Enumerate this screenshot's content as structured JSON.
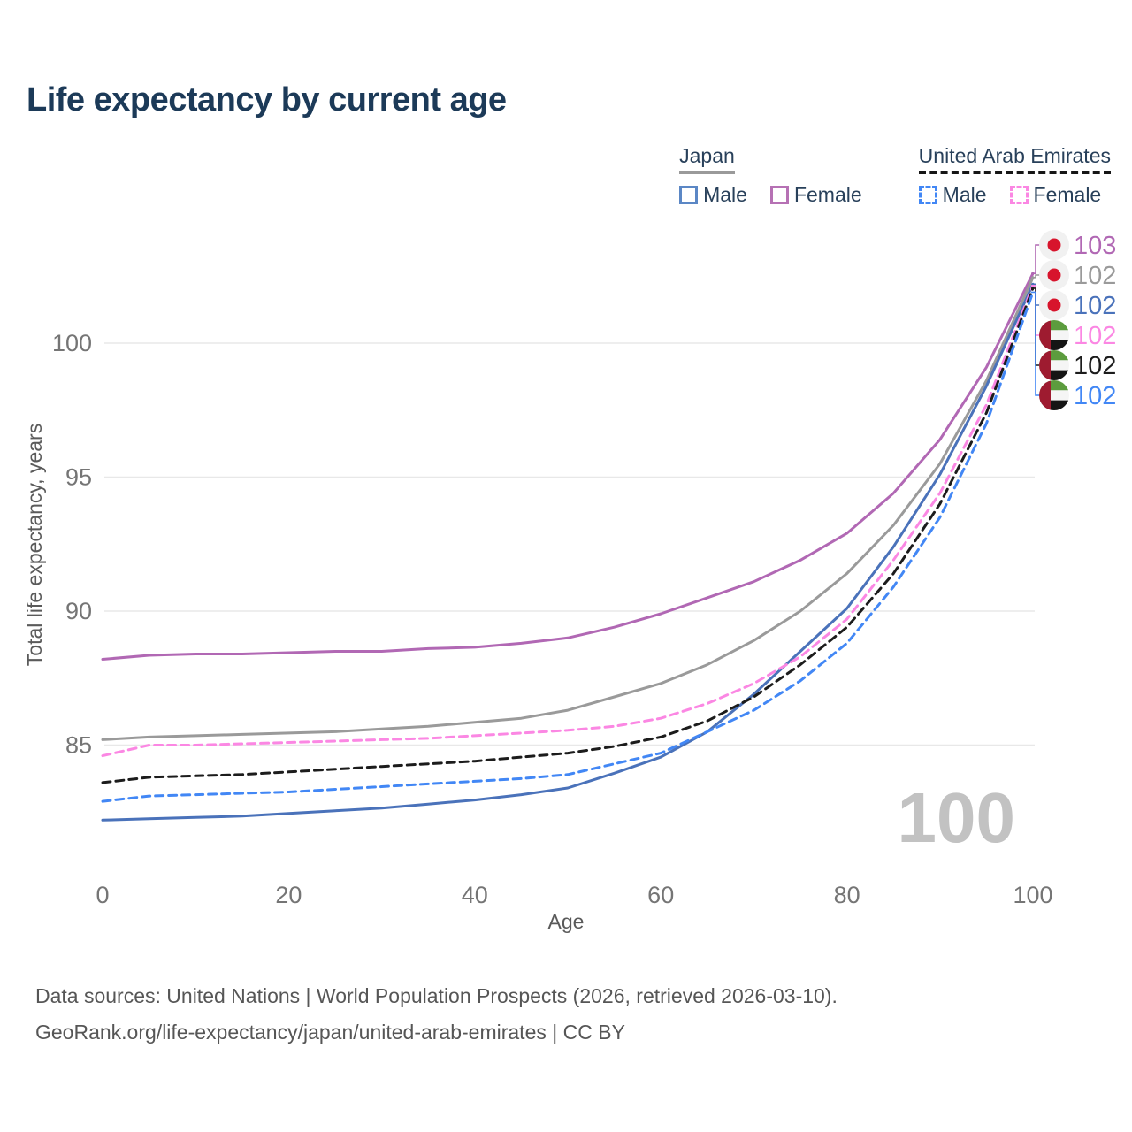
{
  "title": "Life expectancy by current age",
  "legend": {
    "groups": [
      {
        "label": "Japan",
        "underline_color": "#9a9a9a",
        "underline_style": "solid",
        "items": [
          {
            "label": "Male",
            "color": "#4a72ba",
            "style": "solid"
          },
          {
            "label": "Female",
            "color": "#b168b4",
            "style": "solid"
          }
        ]
      },
      {
        "label": "United Arab Emirates",
        "underline_color": "#161616",
        "underline_style": "dashed",
        "items": [
          {
            "label": "Male",
            "color": "#4287f5",
            "style": "dashed"
          },
          {
            "label": "Female",
            "color": "#fb87e3",
            "style": "dashed"
          }
        ]
      }
    ]
  },
  "watermark": "100",
  "footer": {
    "line1": "Data sources: United Nations | World Population Prospects (2026, retrieved 2026-03-10).",
    "line2": "GeoRank.org/life-expectancy/japan/united-arab-emirates | CC BY"
  },
  "chart_data": {
    "type": "line",
    "title": "Life expectancy by current age",
    "xlabel": "Age",
    "ylabel": "Total life expectancy, years",
    "xlim": [
      0,
      100
    ],
    "ylim": [
      81.5,
      103.5
    ],
    "x_ticks": [
      0,
      20,
      40,
      60,
      80,
      100
    ],
    "y_ticks": [
      85,
      90,
      95,
      100
    ],
    "grid": "horizontal-only",
    "legend_position": "top-right",
    "x": [
      0,
      5,
      10,
      15,
      20,
      25,
      30,
      35,
      40,
      45,
      50,
      55,
      60,
      65,
      70,
      75,
      80,
      85,
      90,
      95,
      100
    ],
    "series": [
      {
        "name": "Japan Female",
        "flag": "japan",
        "color": "#b168b4",
        "style": "solid",
        "end_label": "103",
        "values": [
          88.2,
          88.35,
          88.4,
          88.4,
          88.45,
          88.5,
          88.5,
          88.6,
          88.65,
          88.8,
          89.0,
          89.4,
          89.9,
          90.5,
          91.1,
          91.9,
          92.9,
          94.4,
          96.4,
          99.1,
          102.6
        ]
      },
      {
        "name": "Japan",
        "flag": "japan",
        "color": "#9a9a9a",
        "style": "solid",
        "end_label": "102",
        "values": [
          85.2,
          85.3,
          85.35,
          85.4,
          85.45,
          85.5,
          85.6,
          85.7,
          85.85,
          86.0,
          86.3,
          86.8,
          87.3,
          88.0,
          88.9,
          90.0,
          91.4,
          93.2,
          95.5,
          98.6,
          102.45
        ]
      },
      {
        "name": "Japan Male",
        "flag": "japan",
        "color": "#4a72ba",
        "style": "solid",
        "end_label": "102",
        "values": [
          82.2,
          82.25,
          82.3,
          82.35,
          82.45,
          82.55,
          82.65,
          82.8,
          82.95,
          83.15,
          83.4,
          83.95,
          84.55,
          85.5,
          86.9,
          88.5,
          90.1,
          92.4,
          95.1,
          98.4,
          102.2
        ]
      },
      {
        "name": "United Arab Emirates Female",
        "flag": "uae",
        "color": "#fb87e3",
        "style": "dashed",
        "end_label": "102",
        "values": [
          84.6,
          85.0,
          85.0,
          85.05,
          85.1,
          85.15,
          85.2,
          85.25,
          85.35,
          85.45,
          85.55,
          85.7,
          86.0,
          86.55,
          87.3,
          88.3,
          89.7,
          91.9,
          94.4,
          97.7,
          102.15
        ]
      },
      {
        "name": "United Arab Emirates",
        "flag": "uae",
        "color": "#1c1c1c",
        "style": "dashed",
        "end_label": "102",
        "values": [
          83.6,
          83.8,
          83.85,
          83.9,
          84.0,
          84.1,
          84.2,
          84.3,
          84.4,
          84.55,
          84.7,
          84.95,
          85.3,
          85.9,
          86.8,
          88.0,
          89.4,
          91.4,
          94.0,
          97.4,
          102.05
        ]
      },
      {
        "name": "United Arab Emirates Male",
        "flag": "uae",
        "color": "#4287f5",
        "style": "dashed",
        "end_label": "102",
        "values": [
          82.9,
          83.1,
          83.15,
          83.2,
          83.25,
          83.35,
          83.45,
          83.55,
          83.65,
          83.75,
          83.9,
          84.3,
          84.7,
          85.5,
          86.3,
          87.4,
          88.8,
          90.9,
          93.5,
          97.0,
          101.9
        ]
      }
    ]
  }
}
